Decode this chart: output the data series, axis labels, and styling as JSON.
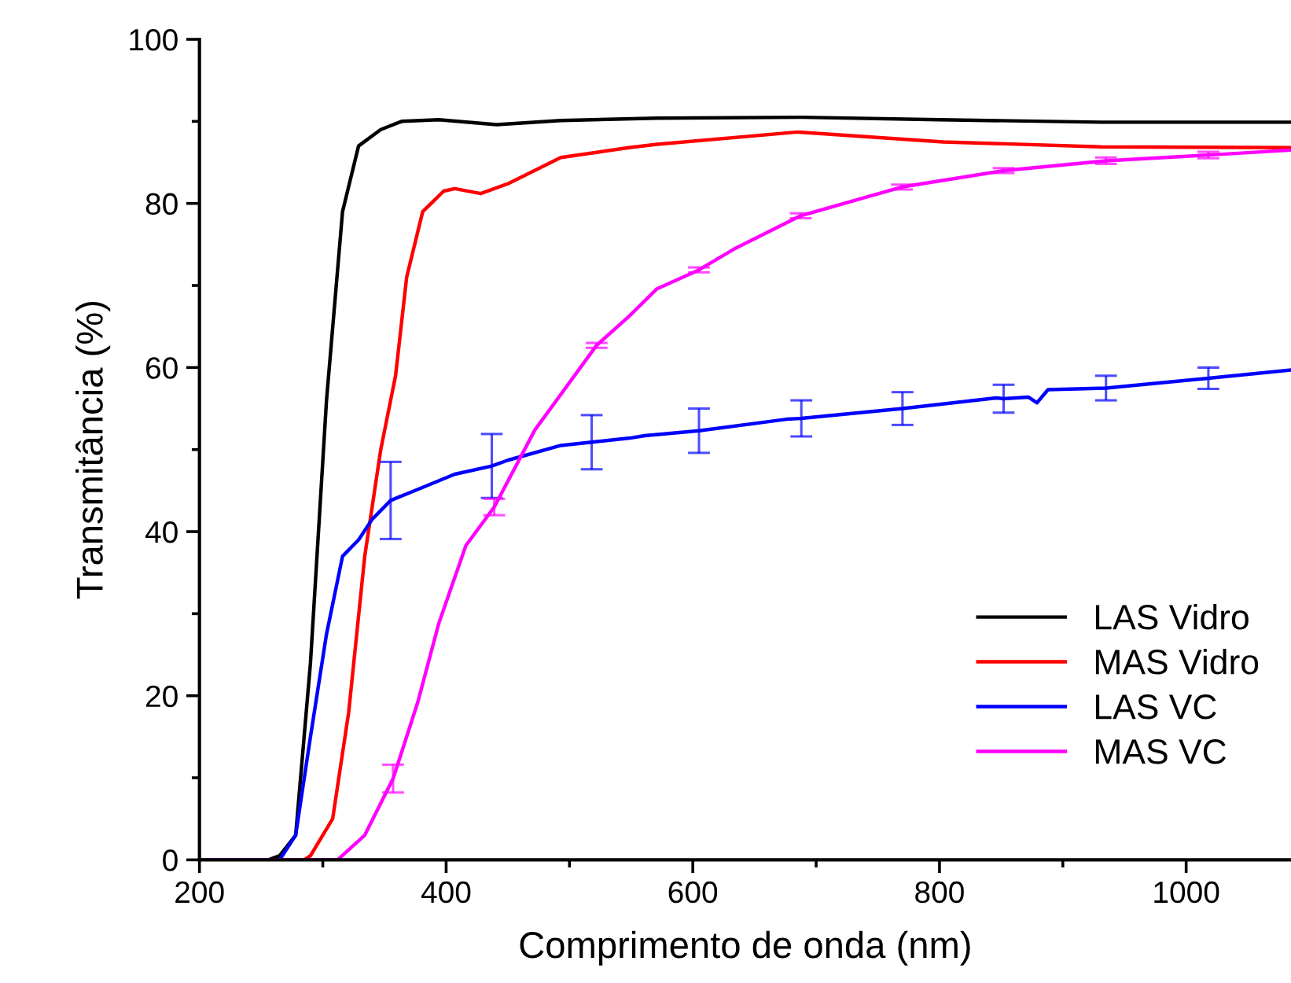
{
  "chart_data": {
    "type": "line",
    "xlabel": "Comprimento de onda (nm)",
    "ylabel": "Transmitância (%)",
    "xlim": [
      200,
      1085
    ],
    "ylim": [
      0,
      100
    ],
    "xticks": [
      200,
      {
        "value": 300,
        "label": null
      },
      400,
      {
        "value": 500,
        "label": null
      },
      600,
      {
        "value": 700,
        "label": null
      },
      800,
      {
        "value": 900,
        "label": null
      },
      1000
    ],
    "yticks": [
      0,
      {
        "value": 10,
        "label": null
      },
      20,
      {
        "value": 30,
        "label": null
      },
      40,
      {
        "value": 50,
        "label": null
      },
      60,
      {
        "value": 70,
        "label": null
      },
      80,
      {
        "value": 90,
        "label": null
      },
      100
    ],
    "legend": "bottom right",
    "grid": false,
    "marker": "none",
    "line_style": "solid",
    "series": [
      {
        "name": "LAS Vidro",
        "color": "#000000",
        "x": [
          200,
          256,
          265,
          278,
          290,
          303,
          316,
          329,
          347,
          364,
          394,
          441,
          493,
          571,
          689,
          800,
          931,
          1085
        ],
        "values": [
          0,
          0,
          0.5,
          3,
          24,
          56,
          79,
          87,
          89,
          90,
          90.2,
          89.6,
          90.1,
          90.4,
          90.5,
          90.2,
          89.9,
          89.9
        ]
      },
      {
        "name": "MAS Vidro",
        "color": "#ff0000",
        "x": [
          200,
          285,
          290,
          308,
          321,
          334,
          347,
          359,
          368,
          381,
          398,
          407,
          428,
          450,
          493,
          548,
          571,
          685,
          803,
          931,
          1085
        ],
        "values": [
          0,
          0,
          0.5,
          5,
          18,
          37,
          50,
          59,
          71,
          79,
          81.5,
          81.8,
          81.2,
          82.4,
          85.6,
          86.8,
          87.2,
          88.7,
          87.5,
          86.9,
          86.8
        ]
      },
      {
        "name": "LAS VC",
        "color": "#0000ff",
        "x": [
          200,
          265,
          278,
          290,
          303,
          316,
          329,
          340,
          355,
          381,
          407,
          437,
          450,
          493,
          518,
          549,
          561,
          605,
          676,
          688,
          770,
          846,
          852,
          872,
          879,
          888,
          935,
          1018,
          1085
        ],
        "values": [
          0,
          0,
          3,
          15,
          27.5,
          37,
          39,
          41.5,
          43.8,
          45.4,
          47,
          48,
          48.7,
          50.5,
          50.9,
          51.4,
          51.7,
          52.3,
          53.7,
          53.8,
          55,
          56.3,
          56.2,
          56.4,
          55.7,
          57.3,
          57.5,
          58.7,
          59.7
        ],
        "errors": [
          null,
          null,
          null,
          null,
          null,
          null,
          null,
          null,
          4.7,
          null,
          null,
          3.9,
          null,
          null,
          3.3,
          null,
          null,
          2.7,
          null,
          2.2,
          2.0,
          null,
          1.7,
          null,
          null,
          null,
          1.5,
          1.3,
          null
        ]
      },
      {
        "name": "MAS VC",
        "color": "#ff00ff",
        "x": [
          200,
          312,
          334,
          357,
          377,
          394,
          416,
          439,
          472,
          522,
          548,
          571,
          605,
          633,
          687.5,
          769.5,
          852,
          935,
          1018,
          1085
        ],
        "values": [
          0,
          0,
          3,
          9.9,
          19.2,
          28.8,
          38.3,
          43,
          52.4,
          62.7,
          66.2,
          69.6,
          71.9,
          74.4,
          78.5,
          82,
          84,
          85.2,
          85.9,
          86.5
        ],
        "errors": [
          null,
          null,
          null,
          1.7,
          null,
          null,
          null,
          1.0,
          null,
          0.3,
          null,
          null,
          0.3,
          null,
          0.3,
          0.3,
          0.3,
          0.4,
          0.4,
          null
        ]
      }
    ]
  }
}
